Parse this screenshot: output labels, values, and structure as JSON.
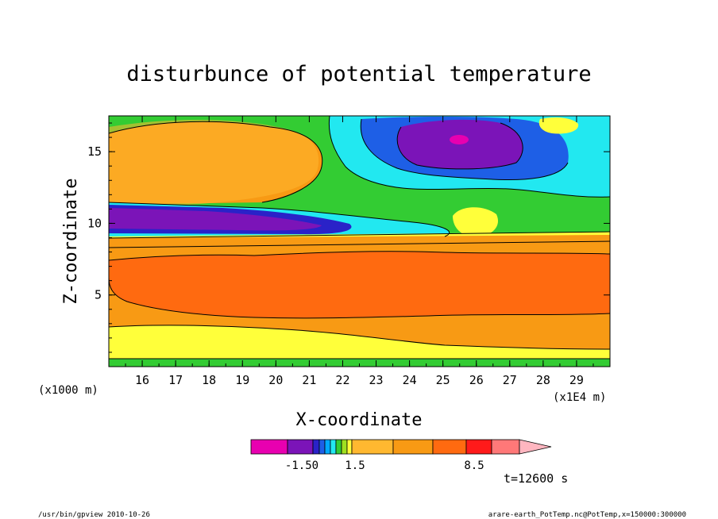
{
  "chart_data": {
    "type": "heatmap",
    "title": "disturbunce of potential temperature",
    "xlabel": "X-coordinate",
    "ylabel": "Z-coordinate",
    "x_unit": "(x1E4 m)",
    "y_unit": "(x1000 m)",
    "x_ticks": [
      "16",
      "17",
      "18",
      "19",
      "20",
      "21",
      "22",
      "23",
      "24",
      "25",
      "26",
      "27",
      "28",
      "29"
    ],
    "y_ticks": [
      "5",
      "10",
      "15"
    ],
    "xlim": [
      15,
      30
    ],
    "ylim": [
      0,
      17.5
    ],
    "colorbar": {
      "colors": [
        "#e800b0",
        "#7b14b8",
        "#2a22c8",
        "#1e5fe6",
        "#00aaff",
        "#22e8f0",
        "#33cc33",
        "#a0e020",
        "#ffff3a",
        "#ffb830",
        "#f89a14",
        "#ff6a10",
        "#ff1a1a",
        "#ff7878",
        "#ffb6c0"
      ],
      "tick_labels": [
        "-1.50",
        "1.5",
        "8.5"
      ]
    },
    "time_label": "t=12600 s"
  },
  "footer": {
    "left": "/usr/bin/gpview  2010-10-26",
    "right": "arare-earth_PotTemp.nc@PotTemp,x=150000:300000"
  }
}
